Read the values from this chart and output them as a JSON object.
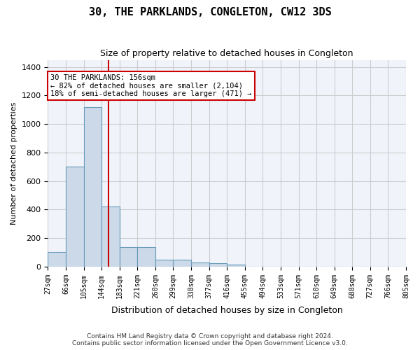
{
  "title": "30, THE PARKLANDS, CONGLETON, CW12 3DS",
  "subtitle": "Size of property relative to detached houses in Congleton",
  "xlabel": "Distribution of detached houses by size in Congleton",
  "ylabel": "Number of detached properties",
  "footnote1": "Contains HM Land Registry data © Crown copyright and database right 2024.",
  "footnote2": "Contains public sector information licensed under the Open Government Licence v3.0.",
  "bar_color": "#ccd9e8",
  "bar_edgecolor": "#6699bb",
  "grid_color": "#cccccc",
  "bg_color": "#f0f4fa",
  "red_line_color": "#cc0000",
  "annotation_box_color": "#cc0000",
  "bins": [
    "27sqm",
    "66sqm",
    "105sqm",
    "144sqm",
    "183sqm",
    "221sqm",
    "260sqm",
    "299sqm",
    "338sqm",
    "377sqm",
    "416sqm",
    "455sqm",
    "494sqm",
    "533sqm",
    "571sqm",
    "610sqm",
    "649sqm",
    "688sqm",
    "727sqm",
    "766sqm",
    "805sqm"
  ],
  "values": [
    105,
    700,
    1120,
    420,
    135,
    135,
    50,
    50,
    28,
    25,
    12,
    0,
    0,
    0,
    0,
    0,
    0,
    0,
    0,
    0
  ],
  "ylim": [
    0,
    1450
  ],
  "yticks": [
    0,
    200,
    400,
    600,
    800,
    1000,
    1200,
    1400
  ],
  "property_size_sqm": 156,
  "property_bin_index": 3,
  "annotation_text_line1": "30 THE PARKLANDS: 156sqm",
  "annotation_text_line2": "← 82% of detached houses are smaller (2,104)",
  "annotation_text_line3": "18% of semi-detached houses are larger (471) →",
  "red_line_x": 3.4
}
